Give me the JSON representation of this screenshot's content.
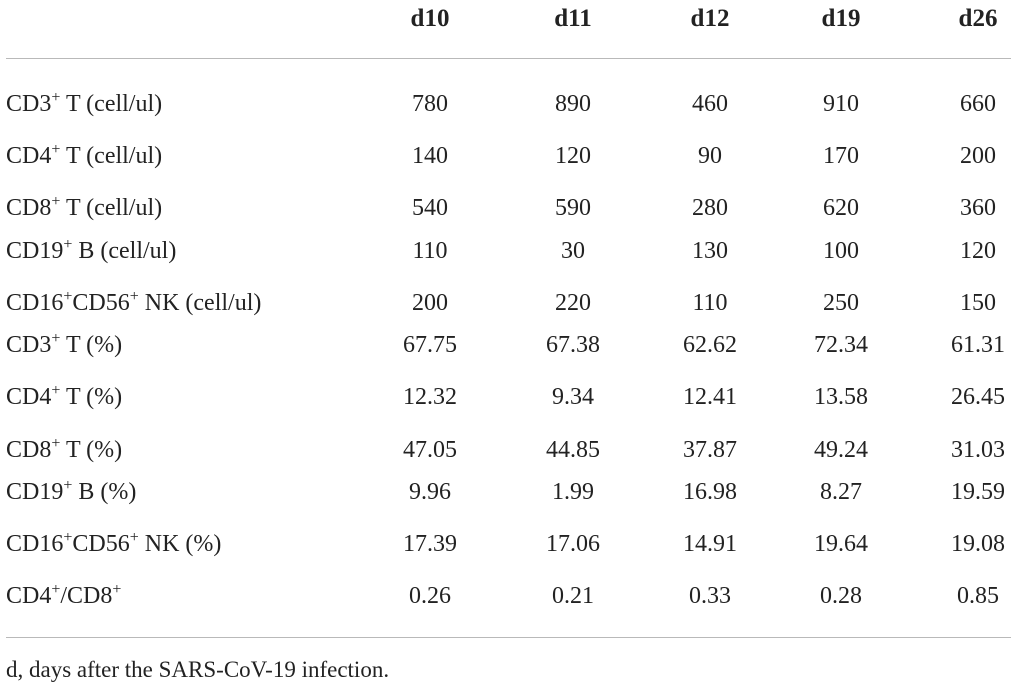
{
  "table": {
    "columns": [
      "d10",
      "d11",
      "d12",
      "d19",
      "d26"
    ],
    "rows": [
      {
        "label_parts": [
          {
            "t": "CD3"
          },
          {
            "sup": "+"
          },
          {
            "t": " T (cell/ul)"
          }
        ],
        "values": [
          "780",
          "890",
          "460",
          "910",
          "660"
        ]
      },
      {
        "label_parts": [
          {
            "t": "CD4"
          },
          {
            "sup": "+"
          },
          {
            "t": " T (cell/ul)"
          }
        ],
        "values": [
          "140",
          "120",
          "90",
          "170",
          "200"
        ]
      },
      {
        "label_parts": [
          {
            "t": "CD8"
          },
          {
            "sup": "+"
          },
          {
            "t": " T (cell/ul)"
          }
        ],
        "values": [
          "540",
          "590",
          "280",
          "620",
          "360"
        ]
      },
      {
        "label_parts": [
          {
            "t": "CD19"
          },
          {
            "sup": "+"
          },
          {
            "t": " B (cell/ul)"
          }
        ],
        "values": [
          "110",
          "30",
          "130",
          "100",
          "120"
        ]
      },
      {
        "label_parts": [
          {
            "t": "CD16"
          },
          {
            "sup": "+"
          },
          {
            "t": "CD56"
          },
          {
            "sup": "+"
          },
          {
            "t": " NK (cell/ul)"
          }
        ],
        "values": [
          "200",
          "220",
          "110",
          "250",
          "150"
        ]
      },
      {
        "label_parts": [
          {
            "t": "CD3"
          },
          {
            "sup": "+"
          },
          {
            "t": " T (%)"
          }
        ],
        "values": [
          "67.75",
          "67.38",
          "62.62",
          "72.34",
          "61.31"
        ]
      },
      {
        "label_parts": [
          {
            "t": "CD4"
          },
          {
            "sup": "+"
          },
          {
            "t": " T (%)"
          }
        ],
        "values": [
          "12.32",
          "9.34",
          "12.41",
          "13.58",
          "26.45"
        ]
      },
      {
        "label_parts": [
          {
            "t": "CD8"
          },
          {
            "sup": "+"
          },
          {
            "t": " T (%)"
          }
        ],
        "values": [
          "47.05",
          "44.85",
          "37.87",
          "49.24",
          "31.03"
        ]
      },
      {
        "label_parts": [
          {
            "t": "CD19"
          },
          {
            "sup": "+"
          },
          {
            "t": " B (%)"
          }
        ],
        "values": [
          "9.96",
          "1.99",
          "16.98",
          "8.27",
          "19.59"
        ]
      },
      {
        "label_parts": [
          {
            "t": "CD16"
          },
          {
            "sup": "+"
          },
          {
            "t": "CD56"
          },
          {
            "sup": "+"
          },
          {
            "t": " NK (%)"
          }
        ],
        "values": [
          "17.39",
          "17.06",
          "14.91",
          "19.64",
          "19.08"
        ]
      },
      {
        "label_parts": [
          {
            "t": "CD4"
          },
          {
            "sup": "+"
          },
          {
            "t": "/CD8"
          },
          {
            "sup": "+"
          }
        ],
        "values": [
          "0.26",
          "0.21",
          "0.33",
          "0.28",
          "0.85"
        ]
      }
    ]
  },
  "footnote": "d, days after the SARS-CoV-19 infection."
}
